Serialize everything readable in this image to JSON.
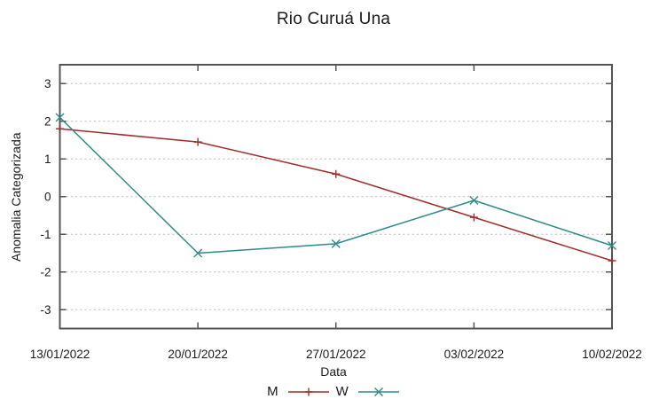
{
  "title": "Rio Curuá Una",
  "chart_data": {
    "type": "line",
    "title": "Rio Curuá Una",
    "xlabel": "Data",
    "ylabel": "Anomalia Categorizada",
    "categories": [
      "13/01/2022",
      "20/01/2022",
      "27/01/2022",
      "03/02/2022",
      "10/02/2022"
    ],
    "series": [
      {
        "name": "M",
        "marker": "plus",
        "color": "#a02c2c",
        "values": [
          1.8,
          1.45,
          0.6,
          -0.55,
          -1.7
        ]
      },
      {
        "name": "W",
        "marker": "cross",
        "color": "#2e8b8b",
        "values": [
          2.1,
          -1.5,
          -1.25,
          -0.1,
          -1.3
        ]
      }
    ],
    "ylim": [
      -3.5,
      3.5
    ],
    "yticks": [
      3,
      2,
      1,
      0,
      -1,
      -2,
      -3
    ],
    "grid": "horizontal-dotted",
    "legend_position": "bottom-center",
    "colors": {
      "axis": "#545454",
      "grid": "#b8b8b8",
      "text": "#1a1a1a"
    }
  }
}
